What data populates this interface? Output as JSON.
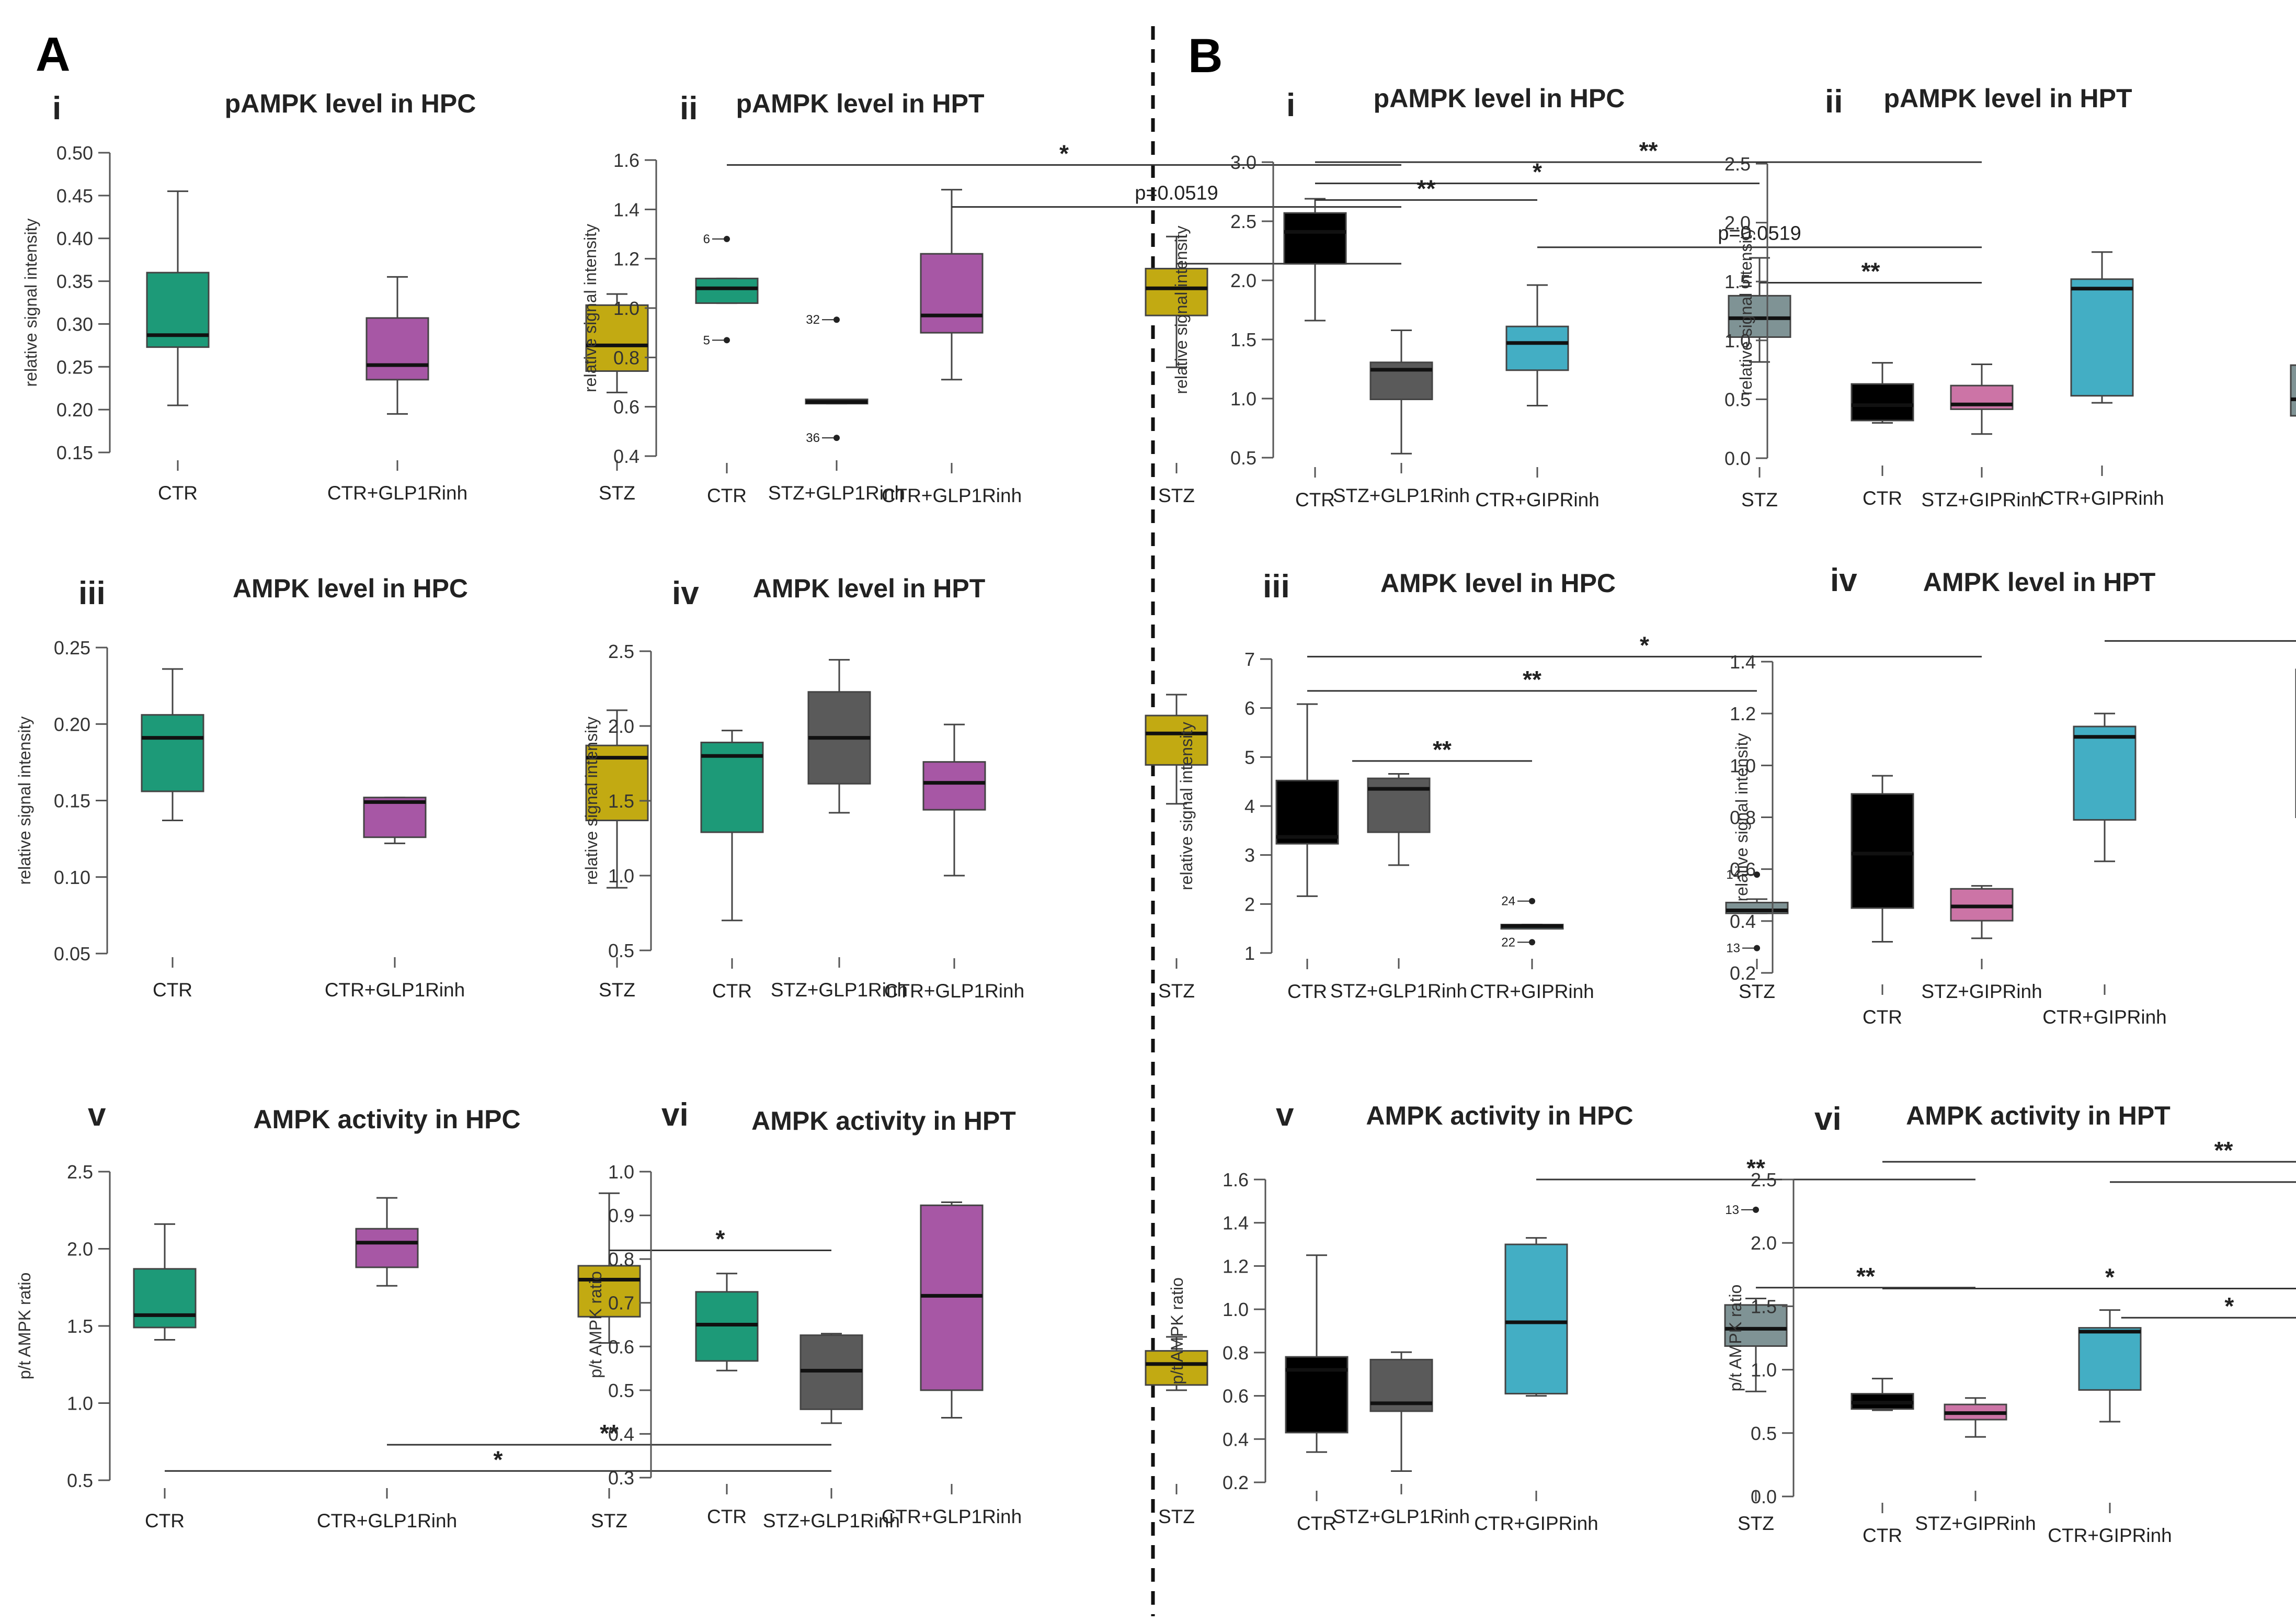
{
  "sections": [
    {
      "label": "A"
    },
    {
      "label": "B"
    }
  ],
  "colors": {
    "green": "#1d9a78",
    "purple": "#a757a5",
    "olive": "#c2aa12",
    "gray": "#5a5a5a",
    "black": "#000000",
    "cyan": "#43aec4",
    "slate": "#7f9395",
    "pink": "#cc74a6"
  },
  "chart_data": [
    {
      "type": "box",
      "roman": "i",
      "title": "pAMPK level in HPC",
      "ylabel": "relative signal intensity",
      "ylim": [
        0.15,
        0.5
      ],
      "yticks": [
        "0.15",
        "0.20",
        "0.25",
        "0.30",
        "0.35",
        "0.40",
        "0.45",
        "0.50"
      ],
      "categories": [
        "CTR",
        "CTR+GLP1Rinh",
        "STZ",
        "STZ+GLP1Rinh"
      ],
      "colors": [
        "green",
        "purple",
        "olive",
        "gray"
      ],
      "boxes": [
        {
          "min": 0.205,
          "q1": 0.273,
          "median": 0.287,
          "q3": 0.36,
          "max": 0.455
        },
        {
          "min": 0.195,
          "q1": 0.235,
          "median": 0.252,
          "q3": 0.307,
          "max": 0.355
        },
        {
          "min": 0.22,
          "q1": 0.245,
          "median": 0.275,
          "q3": 0.322,
          "max": 0.335
        },
        {
          "min": 0.207,
          "q1": 0.207,
          "median": 0.209,
          "q3": 0.212,
          "max": 0.212
        }
      ],
      "outliers": [
        {
          "cat": 3,
          "value": 0.305,
          "label": "32"
        },
        {
          "cat": 3,
          "value": 0.167,
          "label": "36"
        }
      ],
      "brackets": []
    },
    {
      "type": "box",
      "roman": "ii",
      "title": "pAMPK level in HPT",
      "ylabel": "relative signal intensity",
      "ylim": [
        0.4,
        1.6
      ],
      "yticks": [
        "0.4",
        "0.6",
        "0.8",
        "1.0",
        "1.2",
        "1.4",
        "1.6"
      ],
      "categories": [
        "CTR",
        "CTR+GLP1Rinh",
        "STZ",
        "STZ+GLP1Rinh"
      ],
      "colors": [
        "green",
        "purple",
        "olive",
        "gray"
      ],
      "boxes": [
        {
          "min": 1.02,
          "q1": 1.02,
          "median": 1.08,
          "q3": 1.12,
          "max": 1.12
        },
        {
          "min": 0.71,
          "q1": 0.9,
          "median": 0.97,
          "q3": 1.22,
          "max": 1.48
        },
        {
          "min": 0.76,
          "q1": 0.97,
          "median": 1.08,
          "q3": 1.16,
          "max": 1.29
        },
        {
          "min": 0.41,
          "q1": 0.63,
          "median": 0.75,
          "q3": 0.78,
          "max": 0.91
        }
      ],
      "outliers": [
        {
          "cat": 0,
          "value": 1.28,
          "label": "6"
        },
        {
          "cat": 0,
          "value": 0.87,
          "label": "5"
        }
      ],
      "brackets": [
        {
          "from": 0,
          "to": 3,
          "value": 1.58,
          "text": "*"
        },
        {
          "from": 1,
          "to": 3,
          "value": 1.41,
          "text": "p=0.0519"
        },
        {
          "from": 2,
          "to": 3,
          "value": 1.18,
          "text": "*"
        }
      ]
    },
    {
      "type": "box",
      "roman": "iii",
      "title": "AMPK level in HPC",
      "ylabel": "relative signal intensity",
      "ylim": [
        0.05,
        0.25
      ],
      "yticks": [
        "0.05",
        "0.10",
        "0.15",
        "0.20",
        "0.25"
      ],
      "categories": [
        "CTR",
        "CTR+GLP1Rinh",
        "STZ",
        "STZ+GLP1Rinh"
      ],
      "colors": [
        "green",
        "purple",
        "olive",
        "gray"
      ],
      "boxes": [
        {
          "min": 0.137,
          "q1": 0.156,
          "median": 0.191,
          "q3": 0.206,
          "max": 0.236
        },
        {
          "min": 0.122,
          "q1": 0.126,
          "median": 0.149,
          "q3": 0.152,
          "max": 0.152
        },
        {
          "min": 0.093,
          "q1": 0.137,
          "median": 0.178,
          "q3": 0.186,
          "max": 0.209
        },
        {
          "min": 0.142,
          "q1": 0.161,
          "median": 0.191,
          "q3": 0.221,
          "max": 0.242
        }
      ],
      "outliers": [],
      "brackets": []
    },
    {
      "type": "box",
      "roman": "iv",
      "title": "AMPK level in HPT",
      "ylabel": "relative signal intensity",
      "ylim": [
        0.5,
        2.5
      ],
      "yticks": [
        "0.5",
        "1.0",
        "1.5",
        "2.0",
        "2.5"
      ],
      "categories": [
        "CTR",
        "CTR+GLP1Rinh",
        "STZ",
        "STZ+GLP1Rinh"
      ],
      "colors": [
        "green",
        "purple",
        "olive",
        "gray"
      ],
      "boxes": [
        {
          "min": 0.7,
          "q1": 1.29,
          "median": 1.8,
          "q3": 1.89,
          "max": 1.97
        },
        {
          "min": 1.0,
          "q1": 1.44,
          "median": 1.62,
          "q3": 1.76,
          "max": 2.01
        },
        {
          "min": 1.48,
          "q1": 1.74,
          "median": 1.95,
          "q3": 2.07,
          "max": 2.21
        },
        {
          "min": 1.07,
          "q1": 1.29,
          "median": 1.58,
          "q3": 1.65,
          "max": 1.68
        }
      ],
      "outliers": [],
      "brackets": []
    },
    {
      "type": "box",
      "roman": "v",
      "title": "AMPK activity in HPC",
      "ylabel": "p/t AMPK ratio",
      "ylim": [
        0.5,
        2.5
      ],
      "yticks": [
        "0.5",
        "1.0",
        "1.5",
        "2.0",
        "2.5"
      ],
      "categories": [
        "CTR",
        "CTR+GLP1Rinh",
        "STZ",
        "STZ+GLP1Rinh"
      ],
      "colors": [
        "green",
        "purple",
        "olive",
        "gray"
      ],
      "boxes": [
        {
          "min": 1.41,
          "q1": 1.49,
          "median": 1.57,
          "q3": 1.87,
          "max": 2.16
        },
        {
          "min": 1.76,
          "q1": 1.88,
          "median": 2.04,
          "q3": 2.13,
          "max": 2.33
        },
        {
          "min": 1.39,
          "q1": 1.56,
          "median": 1.8,
          "q3": 1.89,
          "max": 2.36
        },
        {
          "min": 0.87,
          "q1": 0.96,
          "median": 1.21,
          "q3": 1.44,
          "max": 1.45
        }
      ],
      "outliers": [],
      "brackets": [
        {
          "from": 2,
          "to": 3,
          "value": 1.99,
          "text": "*",
          "textSide": "above"
        },
        {
          "from": 1,
          "to": 3,
          "value": 0.73,
          "text": "**",
          "textSide": "above"
        },
        {
          "from": 0,
          "to": 3,
          "value": 0.56,
          "text": "*",
          "textSide": "above"
        }
      ]
    },
    {
      "type": "box",
      "roman": "vi",
      "title": "AMPK activity in HPT",
      "ylabel": "p/t AMPK ratio",
      "ylim": [
        0.3,
        1.0
      ],
      "yticks": [
        "0.3",
        "0.4",
        "0.5",
        "0.6",
        "0.7",
        "0.8",
        "0.9",
        "1.0"
      ],
      "categories": [
        "CTR",
        "CTR+GLP1Rinh",
        "STZ",
        "STZ+GLP1Rinh"
      ],
      "colors": [
        "green",
        "purple",
        "olive",
        "gray"
      ],
      "boxes": [
        {
          "min": 0.545,
          "q1": 0.567,
          "median": 0.65,
          "q3": 0.725,
          "max": 0.767
        },
        {
          "min": 0.437,
          "q1": 0.5,
          "median": 0.716,
          "q3": 0.923,
          "max": 0.93
        },
        {
          "min": 0.5,
          "q1": 0.512,
          "median": 0.56,
          "q3": 0.59,
          "max": 0.622
        },
        {
          "min": 0.315,
          "q1": 0.452,
          "median": 0.47,
          "q3": 0.57,
          "max": 0.587
        }
      ],
      "outliers": [],
      "brackets": []
    },
    {
      "type": "box",
      "roman": "i",
      "title": "pAMPK level in HPC",
      "ylabel": "relative signal intensity",
      "ylim": [
        0.5,
        3.0
      ],
      "yticks": [
        "0.5",
        "1.0",
        "1.5",
        "2.0",
        "2.5",
        "3.0"
      ],
      "categories": [
        "CTR",
        "CTR+GIPRinh",
        "STZ",
        "STZ+GIPRinh"
      ],
      "colors": [
        "black",
        "cyan",
        "slate",
        "pink"
      ],
      "boxes": [
        {
          "min": 1.66,
          "q1": 2.14,
          "median": 2.41,
          "q3": 2.57,
          "max": 2.69
        },
        {
          "min": 0.94,
          "q1": 1.24,
          "median": 1.47,
          "q3": 1.61,
          "max": 1.96
        },
        {
          "min": 1.31,
          "q1": 1.52,
          "median": 1.68,
          "q3": 1.87,
          "max": 2.19
        },
        {
          "min": 0.7,
          "q1": 0.91,
          "median": 0.95,
          "q3": 1.11,
          "max": 1.29
        }
      ],
      "outliers": [],
      "brackets": [
        {
          "from": 0,
          "to": 3,
          "value": 3.0,
          "text": "**"
        },
        {
          "from": 0,
          "to": 2,
          "value": 2.82,
          "text": "*"
        },
        {
          "from": 0,
          "to": 1,
          "value": 2.68,
          "text": "**"
        },
        {
          "from": 1,
          "to": 3,
          "value": 2.28,
          "text": "p=0.0519"
        },
        {
          "from": 2,
          "to": 3,
          "value": 1.98,
          "text": "**"
        }
      ]
    },
    {
      "type": "box",
      "roman": "ii",
      "title": "pAMPK level in HPT",
      "ylabel": "relative signal intensity",
      "ylim": [
        0.0,
        2.5
      ],
      "yticks": [
        "0.0",
        "0.5",
        "1.0",
        "1.5",
        "2.0",
        "2.5"
      ],
      "categories": [
        "CTR",
        "CTR+GIPRinh",
        "STZ",
        "STZ+GIPRinh"
      ],
      "colors": [
        "black",
        "cyan",
        "slate",
        "pink"
      ],
      "boxes": [
        {
          "min": 0.3,
          "q1": 0.32,
          "median": 0.45,
          "q3": 0.63,
          "max": 0.81
        },
        {
          "min": 0.47,
          "q1": 0.53,
          "median": 1.44,
          "q3": 1.52,
          "max": 1.75
        },
        {
          "min": 0.3,
          "q1": 0.36,
          "median": 0.5,
          "q3": 0.79,
          "max": 0.89
        },
        {
          "min": 0.47,
          "q1": 0.62,
          "median": 1.04,
          "q3": 1.67,
          "max": 2.38
        }
      ],
      "outliers": [],
      "brackets": []
    },
    {
      "type": "box",
      "roman": "iii",
      "title": "AMPK level in HPC",
      "ylabel": "relative signal intensity",
      "ylim": [
        1,
        7
      ],
      "yticks": [
        "1",
        "2",
        "3",
        "4",
        "5",
        "6",
        "7"
      ],
      "categories": [
        "CTR",
        "CTR+GIPRinh",
        "STZ",
        "STZ+GIPRinh"
      ],
      "colors": [
        "black",
        "cyan",
        "slate",
        "pink"
      ],
      "boxes": [
        {
          "min": 2.16,
          "q1": 3.23,
          "median": 3.37,
          "q3": 4.52,
          "max": 6.08
        },
        {
          "min": 1.52,
          "q1": 1.52,
          "median": 1.55,
          "q3": 1.58,
          "max": 1.58
        },
        {
          "min": 1.81,
          "q1": 1.81,
          "median": 1.87,
          "q3": 2.03,
          "max": 2.1
        },
        {
          "min": 1.3,
          "q1": 1.66,
          "median": 1.95,
          "q3": 2.31,
          "max": 2.37
        }
      ],
      "outliers": [
        {
          "cat": 1,
          "value": 2.06,
          "label": "24"
        },
        {
          "cat": 1,
          "value": 1.22,
          "label": "22"
        },
        {
          "cat": 2,
          "value": 2.6,
          "label": "14"
        },
        {
          "cat": 2,
          "value": 1.1,
          "label": "13"
        }
      ],
      "brackets": [
        {
          "from": 0,
          "to": 3,
          "value": 7.05,
          "text": "*"
        },
        {
          "from": 0,
          "to": 2,
          "value": 6.35,
          "text": "**"
        },
        {
          "from": 0,
          "to": 1,
          "value": 4.92,
          "text": "**",
          "fromOffset": 0.2
        }
      ]
    },
    {
      "type": "box",
      "roman": "iv",
      "title": "AMPK level in HPT",
      "ylabel": "relative signal intensity",
      "ylim": [
        0.2,
        1.4
      ],
      "yticks": [
        "0.2",
        "0.4",
        "0.6",
        "0.8",
        "1.0",
        "1.2",
        "1.4"
      ],
      "categories": [
        "CTR",
        "CTR+GIPRinh",
        "STZ",
        "STZ+GIPRinh"
      ],
      "colors": [
        "black",
        "cyan",
        "slate",
        "pink"
      ],
      "boxes": [
        {
          "min": 0.32,
          "q1": 0.45,
          "median": 0.66,
          "q3": 0.89,
          "max": 0.96
        },
        {
          "min": 0.63,
          "q1": 0.79,
          "median": 1.11,
          "q3": 1.15,
          "max": 1.2
        },
        {
          "min": 0.78,
          "q1": 0.8,
          "median": 1.19,
          "q3": 1.37,
          "max": 1.38
        },
        {
          "min": 0.2,
          "q1": 0.29,
          "median": 0.4,
          "q3": 0.71,
          "max": 0.9
        }
      ],
      "outliers": [],
      "brackets": [
        {
          "from": 1,
          "to": 3,
          "value": 1.48,
          "text": "*"
        },
        {
          "from": 2,
          "to": 3,
          "value": 1.39,
          "text": "*"
        }
      ]
    },
    {
      "type": "box",
      "roman": "v",
      "title": "AMPK activity in HPC",
      "ylabel": "p/t AMPK ratio",
      "ylim": [
        0.2,
        1.6
      ],
      "yticks": [
        "0.2",
        "0.4",
        "0.6",
        "0.8",
        "1.0",
        "1.2",
        "1.4",
        "1.6"
      ],
      "categories": [
        "CTR",
        "CTR+GIPRinh",
        "STZ",
        "STZ+GIPRinh"
      ],
      "colors": [
        "black",
        "cyan",
        "slate",
        "pink"
      ],
      "boxes": [
        {
          "min": 0.34,
          "q1": 0.43,
          "median": 0.72,
          "q3": 0.78,
          "max": 1.25
        },
        {
          "min": 0.6,
          "q1": 0.61,
          "median": 0.94,
          "q3": 1.3,
          "max": 1.33
        },
        {
          "min": 0.62,
          "q1": 0.83,
          "median": 0.91,
          "q3": 1.02,
          "max": 1.05
        },
        {
          "min": 0.41,
          "q1": 0.49,
          "median": 0.52,
          "q3": 0.56,
          "max": 0.59
        }
      ],
      "outliers": [
        {
          "cat": 2,
          "value": 1.46,
          "label": "13"
        }
      ],
      "brackets": [
        {
          "from": 1,
          "to": 3,
          "value": 1.6,
          "text": "**"
        },
        {
          "from": 2,
          "to": 3,
          "value": 1.1,
          "text": "**"
        }
      ]
    },
    {
      "type": "box",
      "roman": "vi",
      "title": "AMPK activity in HPT",
      "ylabel": "p/t AMPK ratio",
      "ylim": [
        0.0,
        2.5
      ],
      "yticks": [
        "0.0",
        "0.5",
        "1.0",
        "1.5",
        "2.0",
        "2.5"
      ],
      "categories": [
        "CTR",
        "CTR+GIPRinh",
        "STZ",
        "STZ+GIPRinh"
      ],
      "colors": [
        "black",
        "cyan",
        "slate",
        "pink"
      ],
      "boxes": [
        {
          "min": 0.68,
          "q1": 0.69,
          "median": 0.74,
          "q3": 0.81,
          "max": 0.93
        },
        {
          "min": 0.59,
          "q1": 0.84,
          "median": 1.3,
          "q3": 1.33,
          "max": 1.47
        },
        {
          "min": 0.47,
          "q1": 0.5,
          "median": 0.58,
          "q3": 0.65,
          "max": 0.71
        },
        {
          "min": 1.46,
          "q1": 1.52,
          "median": 1.89,
          "q3": 2.24,
          "max": 2.29
        }
      ],
      "outliers": [],
      "brackets": [
        {
          "from": 0,
          "to": 3,
          "value": 2.64,
          "text": "**"
        },
        {
          "from": 1,
          "to": 3,
          "value": 2.48,
          "text": "*"
        },
        {
          "from": 2,
          "to": 3,
          "value": 2.33,
          "text": "**",
          "fromOffset": 0.05
        },
        {
          "from": 0,
          "to": 2,
          "value": 1.64,
          "text": "*"
        },
        {
          "from": 1,
          "to": 2,
          "value": 1.41,
          "text": "*",
          "fromOffset": 0.05
        }
      ]
    }
  ]
}
